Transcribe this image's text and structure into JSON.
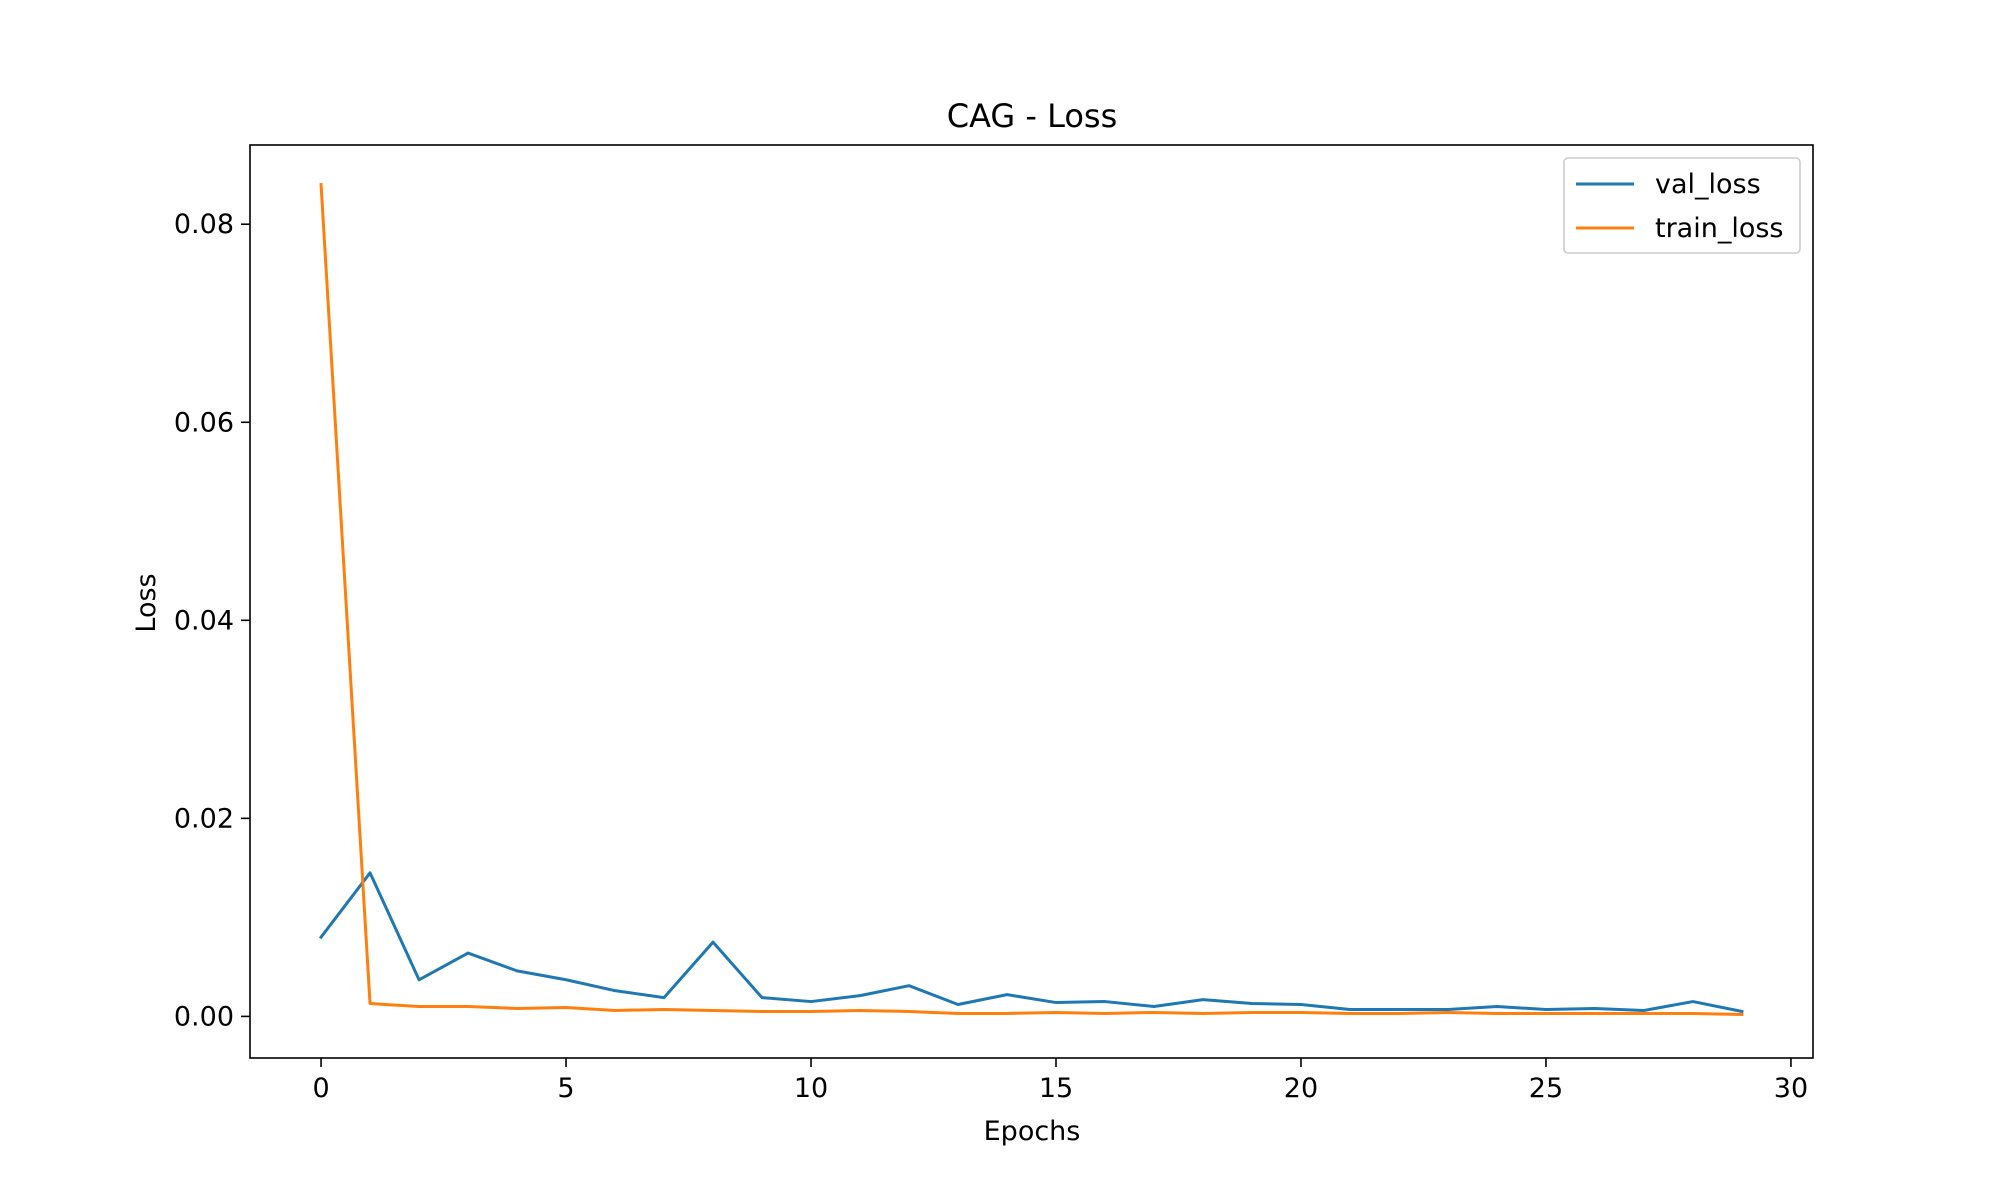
{
  "chart_data": {
    "type": "line",
    "title": "CAG - Loss",
    "xlabel": "Epochs",
    "ylabel": "Loss",
    "xlim": [
      -1.45,
      30.45
    ],
    "ylim": [
      -0.0042,
      0.088
    ],
    "xticks": [
      0,
      5,
      10,
      15,
      20,
      25,
      30
    ],
    "xtick_labels": [
      "0",
      "5",
      "10",
      "15",
      "20",
      "25",
      "30"
    ],
    "yticks": [
      0.0,
      0.02,
      0.04,
      0.06,
      0.08
    ],
    "ytick_labels": [
      "0.00",
      "0.02",
      "0.04",
      "0.06",
      "0.08"
    ],
    "grid": false,
    "legend_position": "top-right",
    "x": [
      0,
      1,
      2,
      3,
      4,
      5,
      6,
      7,
      8,
      9,
      10,
      11,
      12,
      13,
      14,
      15,
      16,
      17,
      18,
      19,
      20,
      21,
      22,
      23,
      24,
      25,
      26,
      27,
      28,
      29
    ],
    "series": [
      {
        "name": "val_loss",
        "color": "#1f77b4",
        "values": [
          0.008,
          0.0145,
          0.0037,
          0.0064,
          0.0046,
          0.0037,
          0.0026,
          0.0019,
          0.0075,
          0.0019,
          0.0015,
          0.0021,
          0.0031,
          0.0012,
          0.0022,
          0.0014,
          0.0015,
          0.001,
          0.0017,
          0.0013,
          0.0012,
          0.0007,
          0.0007,
          0.0007,
          0.001,
          0.0007,
          0.0008,
          0.0006,
          0.0015,
          0.0005
        ]
      },
      {
        "name": "train_loss",
        "color": "#ff7f0e",
        "values": [
          0.084,
          0.0013,
          0.001,
          0.001,
          0.0008,
          0.0009,
          0.0006,
          0.0007,
          0.0006,
          0.0005,
          0.0005,
          0.0006,
          0.0005,
          0.0003,
          0.0003,
          0.0004,
          0.0003,
          0.0004,
          0.0003,
          0.0004,
          0.0004,
          0.0003,
          0.0003,
          0.0004,
          0.0003,
          0.0003,
          0.0003,
          0.0003,
          0.0003,
          0.0002
        ]
      }
    ]
  }
}
